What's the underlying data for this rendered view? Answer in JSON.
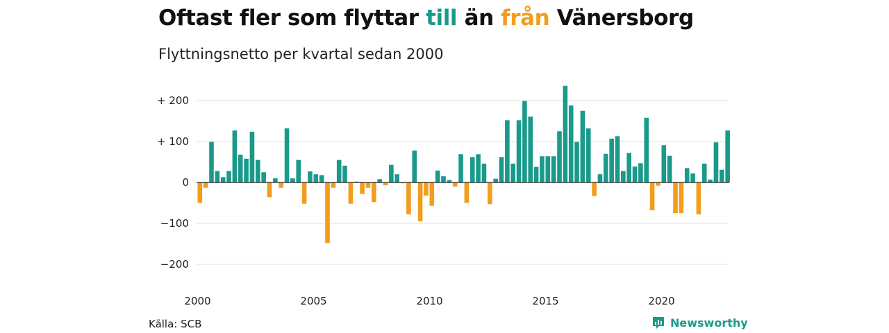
{
  "title": {
    "part1": "Oftast fler som flyttar ",
    "part_till": "till",
    "part2": " än ",
    "part_fran": "från",
    "part3": " Vänersborg"
  },
  "subtitle": "Flyttningsnetto per kvartal sedan 2000",
  "source": "Källa: SCB",
  "brand": "Newsworthy",
  "colors": {
    "positive": "#1a9a8a",
    "negative": "#f29d1e",
    "grid": "#e0e0e0",
    "zero": "#222222"
  },
  "chart_data": {
    "type": "bar",
    "title": "Oftast fler som flyttar till än från Vänersborg",
    "subtitle": "Flyttningsnetto per kvartal sedan 2000",
    "xlabel": "",
    "ylabel": "",
    "ylim": [
      -230,
      240
    ],
    "yticks": [
      {
        "value": 200,
        "label": "+ 200"
      },
      {
        "value": 100,
        "label": "+ 100"
      },
      {
        "value": 0,
        "label": "0"
      },
      {
        "value": -100,
        "label": "−100"
      },
      {
        "value": -200,
        "label": "−200"
      }
    ],
    "xticks": [
      "2000",
      "2005",
      "2010",
      "2015",
      "2020"
    ],
    "grid": true,
    "start_year": 2000,
    "values": [
      -50,
      -13,
      99,
      28,
      13,
      28,
      127,
      68,
      58,
      124,
      55,
      25,
      -36,
      10,
      -13,
      132,
      10,
      55,
      -52,
      27,
      20,
      18,
      -148,
      -13,
      55,
      41,
      -52,
      2,
      -28,
      -13,
      -48,
      8,
      -7,
      43,
      20,
      -2,
      -78,
      78,
      -95,
      -32,
      -57,
      29,
      15,
      6,
      -10,
      69,
      -50,
      62,
      69,
      46,
      -53,
      9,
      62,
      152,
      46,
      152,
      199,
      161,
      38,
      64,
      64,
      64,
      125,
      236,
      188,
      99,
      175,
      132,
      -33,
      20,
      70,
      107,
      113,
      28,
      72,
      39,
      47,
      158,
      -68,
      -8,
      91,
      65,
      -75,
      -75,
      35,
      22,
      -78,
      46,
      7,
      98,
      31,
      127
    ]
  }
}
